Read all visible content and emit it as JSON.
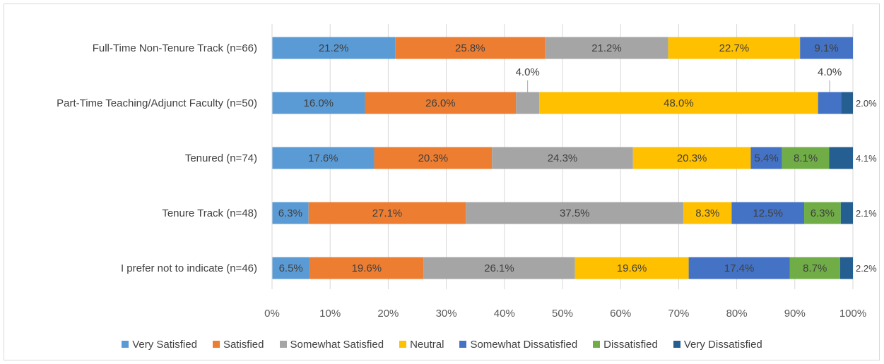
{
  "chart_data": {
    "type": "bar",
    "orientation": "horizontal",
    "stacked": "percent",
    "categories": [
      "Full-Time Non-Tenure Track (n=66)",
      "Part-Time Teaching/Adjunct Faculty (n=50)",
      "Tenured (n=74)",
      "Tenure Track (n=48)",
      "I prefer not to indicate (n=46)"
    ],
    "series": [
      {
        "name": "Very Satisfied",
        "color": "#5B9BD5",
        "values": [
          21.2,
          16.0,
          17.6,
          6.3,
          6.5
        ]
      },
      {
        "name": "Satisfied",
        "color": "#ED7D31",
        "values": [
          25.8,
          26.0,
          20.3,
          27.1,
          19.6
        ]
      },
      {
        "name": "Somewhat Satisfied",
        "color": "#A5A5A5",
        "values": [
          21.2,
          4.0,
          24.3,
          37.5,
          26.1
        ]
      },
      {
        "name": "Neutral",
        "color": "#FFC000",
        "values": [
          22.7,
          48.0,
          20.3,
          8.3,
          19.6
        ]
      },
      {
        "name": "Somewhat Dissatisfied",
        "color": "#4472C4",
        "values": [
          9.1,
          4.0,
          5.4,
          12.5,
          17.4
        ]
      },
      {
        "name": "Dissatisfied",
        "color": "#70AD47",
        "values": [
          0,
          0,
          8.1,
          6.3,
          8.7
        ]
      },
      {
        "name": "Very Dissatisfied",
        "color": "#255E91",
        "values": [
          0,
          2.0,
          4.1,
          2.1,
          2.2
        ]
      }
    ],
    "data_labels": [
      [
        "21.2%",
        "25.8%",
        "21.2%",
        "22.7%",
        "9.1%",
        "",
        ""
      ],
      [
        "16.0%",
        "26.0%",
        "4.0%",
        "48.0%",
        "4.0%",
        "",
        "2.0%"
      ],
      [
        "17.6%",
        "20.3%",
        "24.3%",
        "20.3%",
        "5.4%",
        "8.1%",
        "4.1%"
      ],
      [
        "6.3%",
        "27.1%",
        "37.5%",
        "8.3%",
        "12.5%",
        "6.3%",
        "2.1%"
      ],
      [
        "6.5%",
        "19.6%",
        "26.1%",
        "19.6%",
        "17.4%",
        "8.7%",
        "2.2%"
      ]
    ],
    "x_ticks": [
      "0%",
      "10%",
      "20%",
      "30%",
      "40%",
      "50%",
      "60%",
      "70%",
      "80%",
      "90%",
      "100%"
    ],
    "xlim": [
      0,
      100
    ],
    "grid": true,
    "legend_position": "bottom",
    "title": "",
    "xlabel": "",
    "ylabel": ""
  }
}
